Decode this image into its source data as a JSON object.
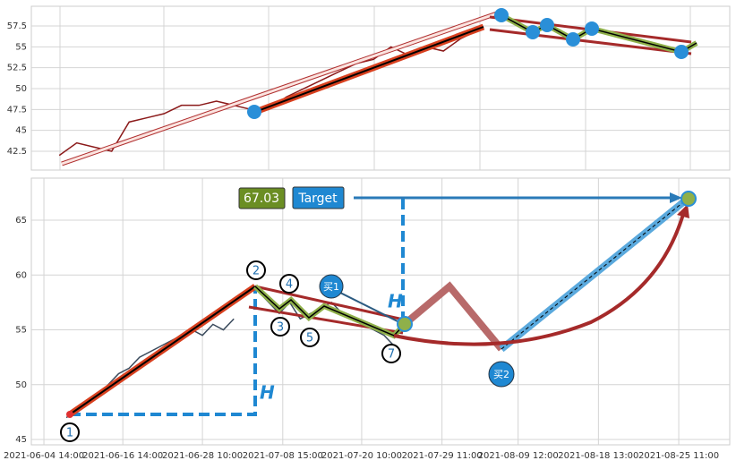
{
  "chart_data": [
    {
      "type": "line",
      "color": "#8b1a1a",
      "grid": true,
      "ylim": [
        40.25,
        59.86
      ],
      "yticks": [
        42.5,
        45.0,
        47.5,
        50.0,
        52.5,
        55.0,
        57.5
      ],
      "xlim": [
        0,
        100
      ],
      "x": [
        4,
        6.5,
        9,
        11.5,
        14,
        16.5,
        19,
        21.5,
        24,
        26.5,
        29,
        31.5,
        34,
        36.5,
        39,
        41.5,
        44,
        46.5,
        49,
        51.5,
        54,
        56.5,
        59,
        61.5,
        64
      ],
      "values": [
        42,
        43.5,
        43,
        42.5,
        46,
        46.5,
        47,
        48,
        48,
        48.5,
        48,
        47.5,
        47.5,
        49,
        50,
        51,
        52,
        53,
        53.5,
        55,
        54,
        55,
        54.5,
        56,
        57
      ]
    },
    {
      "type": "line",
      "color": "#3a4a5c",
      "grid": true,
      "ylim": [
        44.51,
        68.84
      ],
      "yticks": [
        45,
        50,
        55,
        60,
        65
      ],
      "xlim": [
        0,
        100
      ],
      "xticks": [
        {
          "value": 1.8,
          "label": "2021-06-04 14:00"
        },
        {
          "value": 13.1,
          "label": "2021-06-16 14:00"
        },
        {
          "value": 24.5,
          "label": "2021-06-28 10:00"
        },
        {
          "value": 36,
          "label": "2021-07-08 15:00"
        },
        {
          "value": 47.3,
          "label": "2021-07-20 10:00"
        },
        {
          "value": 58.8,
          "label": "2021-07-29 11:00"
        },
        {
          "value": 69.7,
          "label": "2021-08-09 12:00"
        },
        {
          "value": 81.2,
          "label": "2021-08-18 13:00"
        },
        {
          "value": 92.7,
          "label": "2021-08-25 11:00"
        }
      ],
      "x": [
        5,
        6.5,
        8,
        9.5,
        11,
        12.5,
        14,
        15.5,
        17,
        18.5,
        20,
        21.5,
        23,
        24.5,
        26,
        27.5,
        29,
        31,
        32.5,
        34,
        35.5,
        37,
        38.5,
        40,
        41.5,
        43,
        44.5,
        46,
        47.5,
        49,
        50.5,
        52
      ],
      "values": [
        47,
        47.5,
        48.5,
        49,
        50,
        51,
        51.5,
        52.5,
        53,
        53.5,
        54,
        54.5,
        55,
        54.5,
        55.5,
        55,
        56,
        null,
        58.5,
        57.5,
        56.5,
        57.5,
        56,
        56.5,
        57,
        57.5,
        56.5,
        56,
        55.5,
        55,
        54.5,
        53.5
      ],
      "target_price": 67.03,
      "target_label": "Target",
      "height_labels": [
        "H",
        "H"
      ],
      "buy_labels": [
        "买1",
        "买2"
      ],
      "points": [
        "1",
        "2",
        "3",
        "4",
        "5",
        "7"
      ]
    }
  ]
}
